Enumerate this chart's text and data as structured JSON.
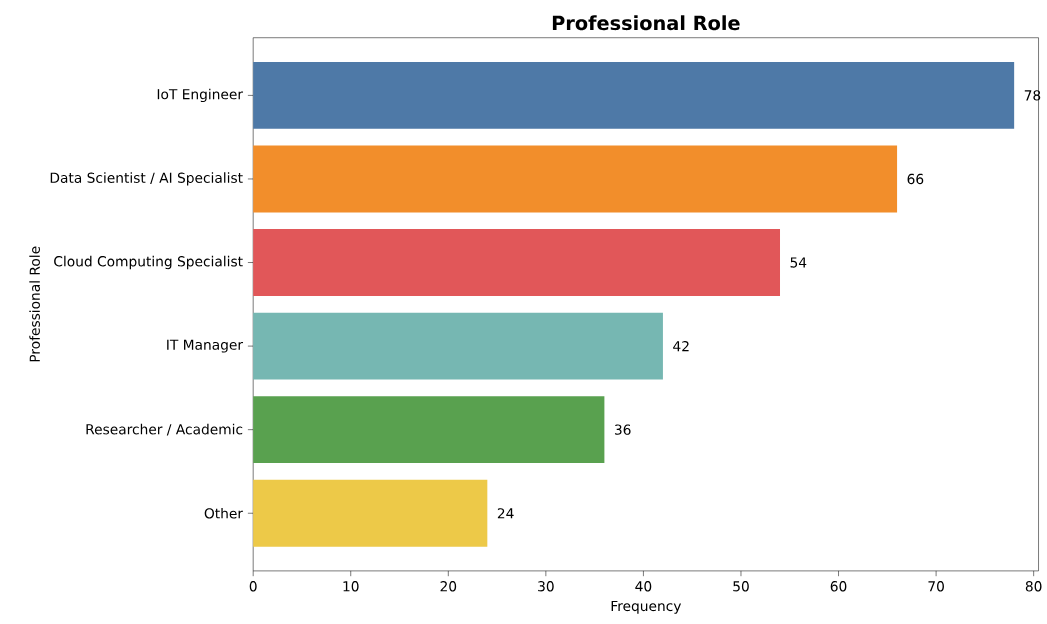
{
  "chart_data": {
    "type": "bar",
    "orientation": "horizontal",
    "title": "Professional Role",
    "xlabel": "Frequency",
    "ylabel": "Professional Role",
    "categories": [
      "IoT Engineer",
      "Data Scientist / AI Specialist",
      "Cloud Computing Specialist",
      "IT Manager",
      "Researcher / Academic",
      "Other"
    ],
    "values": [
      78,
      66,
      54,
      42,
      36,
      24
    ],
    "colors": [
      "#4e79a7",
      "#f28e2b",
      "#e15759",
      "#76b7b2",
      "#59a14f",
      "#edc948"
    ],
    "xlim": [
      0,
      80.5
    ],
    "xticks": [
      0,
      10,
      20,
      30,
      40,
      50,
      60,
      70,
      80
    ],
    "data_labels": true,
    "grid": false
  }
}
